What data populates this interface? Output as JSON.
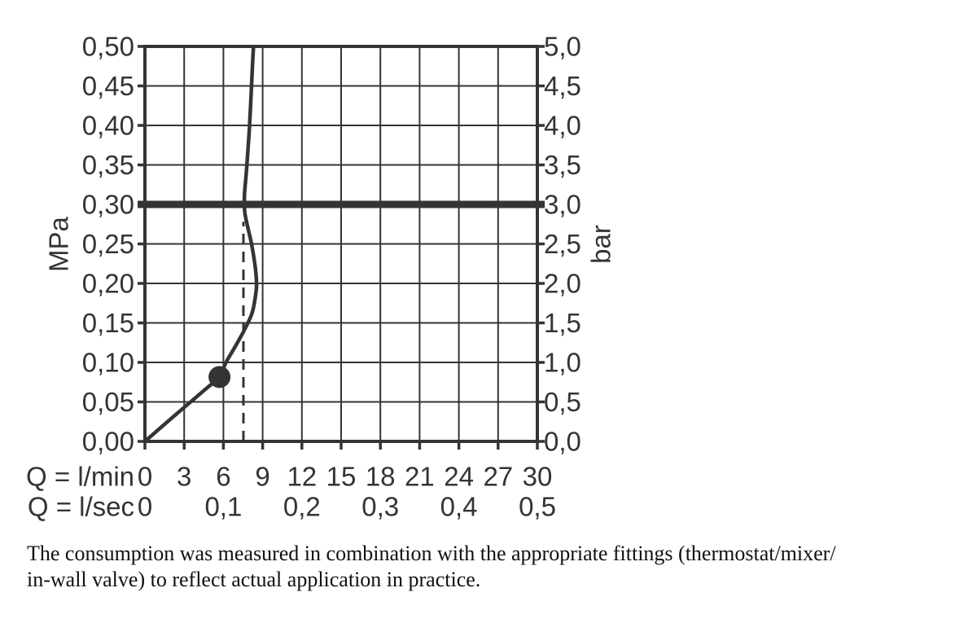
{
  "colors": {
    "ink": "#343434",
    "caption_text": "#111111",
    "background": "#ffffff"
  },
  "chart_data": {
    "type": "line",
    "title": "",
    "grid": {
      "on": true,
      "x_step_lmin": 3,
      "y_step_mpa": 0.05
    },
    "y_left": {
      "unit": "MPa",
      "range": [
        0,
        0.5
      ],
      "ticks": [
        "0,50",
        "0,45",
        "0,40",
        "0,35",
        "0,30",
        "0,25",
        "0,20",
        "0,15",
        "0,10",
        "0,05",
        "0,00"
      ],
      "values": [
        0.5,
        0.45,
        0.4,
        0.35,
        0.3,
        0.25,
        0.2,
        0.15,
        0.1,
        0.05,
        0.0
      ]
    },
    "y_right": {
      "unit": "bar",
      "range": [
        0,
        5
      ],
      "ticks": [
        "5,0",
        "4,5",
        "4,0",
        "3,5",
        "3,0",
        "2,5",
        "2,0",
        "1,5",
        "1,0",
        "0,5",
        "0,0"
      ],
      "values": [
        5.0,
        4.5,
        4.0,
        3.5,
        3.0,
        2.5,
        2.0,
        1.5,
        1.0,
        0.5,
        0.0
      ]
    },
    "x_axis": {
      "range": [
        0,
        30
      ],
      "rows": [
        {
          "label": "Q = l/min",
          "ticks": [
            "0",
            "3",
            "6",
            "9",
            "12",
            "15",
            "18",
            "21",
            "24",
            "27",
            "30"
          ],
          "positions": [
            0,
            3,
            6,
            9,
            12,
            15,
            18,
            21,
            24,
            27,
            30
          ]
        },
        {
          "label": "Q = l/sec",
          "ticks": [
            "0",
            "0,1",
            "0,2",
            "0,3",
            "0,4",
            "0,5"
          ],
          "positions": [
            0,
            6,
            12,
            18,
            24,
            30
          ]
        }
      ]
    },
    "series": [
      {
        "name": "flow-curve",
        "points_q_lmin_p_mpa": [
          [
            0,
            0
          ],
          [
            1.8,
            0.026
          ],
          [
            3.6,
            0.0515
          ],
          [
            4.8,
            0.0685
          ],
          [
            5.7,
            0.0815
          ],
          [
            6.2,
            0.1
          ],
          [
            6.9,
            0.12
          ],
          [
            7.6,
            0.141
          ],
          [
            8.2,
            0.163
          ],
          [
            8.5,
            0.19
          ],
          [
            8.52,
            0.205
          ],
          [
            8.4,
            0.225
          ],
          [
            8.15,
            0.25
          ],
          [
            7.85,
            0.272
          ],
          [
            7.65,
            0.288
          ],
          [
            7.6,
            0.3
          ],
          [
            7.62,
            0.315
          ],
          [
            7.75,
            0.34
          ],
          [
            7.88,
            0.37
          ],
          [
            8.0,
            0.4
          ],
          [
            8.12,
            0.44
          ],
          [
            8.22,
            0.475
          ],
          [
            8.3,
            0.5
          ]
        ]
      }
    ],
    "marker": {
      "q_lmin": 5.7,
      "p_mpa": 0.0815
    },
    "dashed_guide": {
      "q_lmin": 7.53,
      "p_mpa_from": 0,
      "p_mpa_to": 0.278
    },
    "reference_line": {
      "p_mpa": 0.3
    }
  },
  "caption": {
    "lines": [
      "The consumption was measured in combination with the appropriate fittings (thermostat/mixer/",
      "in-wall valve) to reflect actual application in practice."
    ]
  }
}
